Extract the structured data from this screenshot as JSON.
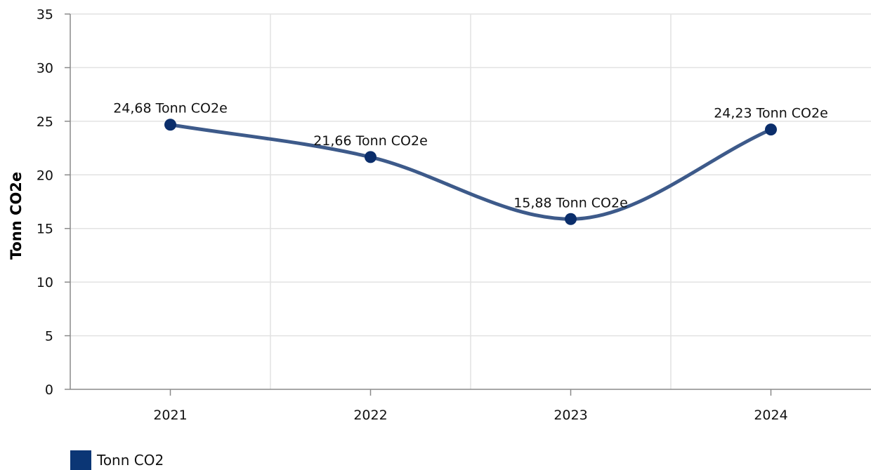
{
  "chart_data": {
    "type": "line",
    "categories": [
      "2021",
      "2022",
      "2023",
      "2024"
    ],
    "series": [
      {
        "name": "Tonn CO2",
        "values": [
          24.68,
          21.66,
          15.88,
          24.23
        ],
        "labels": [
          "24,68 Tonn CO2e",
          "21,66 Tonn CO2e",
          "15,88 Tonn CO2e",
          "24,23 Tonn CO2e"
        ]
      }
    ],
    "title": "",
    "xlabel": "",
    "ylabel": "Tonn CO2e",
    "ylim": [
      0,
      35
    ],
    "yticks": [
      "0",
      "5",
      "10",
      "15",
      "20",
      "25",
      "30",
      "35"
    ],
    "grid": true,
    "legend_position": "bottom-left",
    "line_style": "smooth"
  },
  "colors": {
    "line": "#3d5a8a",
    "marker": "#0b2e6b",
    "legend_swatch": "#0b3675",
    "grid": "#e2e2e2",
    "axis": "#8a8a8a"
  }
}
